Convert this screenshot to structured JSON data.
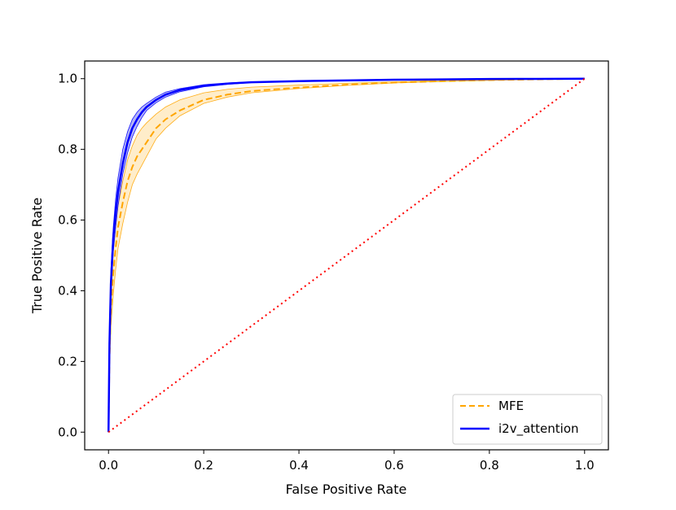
{
  "chart_data": {
    "type": "line",
    "title": "",
    "xlabel": "False Positive Rate",
    "ylabel": "True Positive Rate",
    "xlim": [
      -0.05,
      1.05
    ],
    "ylim": [
      -0.05,
      1.05
    ],
    "xticks": [
      "0.0",
      "0.2",
      "0.4",
      "0.6",
      "0.8",
      "1.0"
    ],
    "yticks": [
      "0.0",
      "0.2",
      "0.4",
      "0.6",
      "0.8",
      "1.0"
    ],
    "grid": false,
    "legend_position": "lower-right",
    "series": [
      {
        "name": "MFE",
        "color": "#ffa500",
        "style": "dashed",
        "band_fill": "#ffdf9e",
        "x": [
          0,
          0.002,
          0.005,
          0.01,
          0.015,
          0.02,
          0.03,
          0.04,
          0.05,
          0.06,
          0.07,
          0.08,
          0.1,
          0.12,
          0.15,
          0.2,
          0.25,
          0.3,
          0.4,
          0.5,
          0.6,
          0.7,
          0.8,
          0.9,
          1.0
        ],
        "y": [
          0.0,
          0.2,
          0.35,
          0.45,
          0.52,
          0.58,
          0.65,
          0.71,
          0.75,
          0.78,
          0.8,
          0.82,
          0.86,
          0.885,
          0.91,
          0.94,
          0.955,
          0.965,
          0.975,
          0.983,
          0.989,
          0.993,
          0.996,
          0.998,
          1.0
        ],
        "y_lower": [
          0.0,
          0.17,
          0.3,
          0.39,
          0.46,
          0.52,
          0.59,
          0.65,
          0.7,
          0.73,
          0.755,
          0.78,
          0.83,
          0.86,
          0.895,
          0.93,
          0.948,
          0.96,
          0.972,
          0.981,
          0.988,
          0.992,
          0.995,
          0.998,
          1.0
        ],
        "y_upper": [
          0.0,
          0.24,
          0.4,
          0.51,
          0.58,
          0.64,
          0.71,
          0.77,
          0.81,
          0.84,
          0.86,
          0.875,
          0.9,
          0.92,
          0.94,
          0.96,
          0.97,
          0.976,
          0.982,
          0.987,
          0.991,
          0.995,
          0.997,
          0.999,
          1.0
        ]
      },
      {
        "name": "i2v_attention",
        "color": "#0000ff",
        "style": "solid",
        "band_fill": "#7777ee",
        "x": [
          0,
          0.002,
          0.005,
          0.01,
          0.015,
          0.02,
          0.03,
          0.04,
          0.05,
          0.06,
          0.07,
          0.08,
          0.1,
          0.12,
          0.15,
          0.2,
          0.25,
          0.3,
          0.4,
          0.5,
          0.6,
          0.7,
          0.8,
          0.9,
          1.0
        ],
        "y": [
          0.0,
          0.25,
          0.42,
          0.55,
          0.62,
          0.68,
          0.76,
          0.82,
          0.86,
          0.885,
          0.905,
          0.92,
          0.94,
          0.955,
          0.968,
          0.98,
          0.986,
          0.99,
          0.993,
          0.995,
          0.997,
          0.998,
          0.999,
          0.9995,
          1.0
        ],
        "y_lower": [
          0.0,
          0.22,
          0.38,
          0.51,
          0.58,
          0.64,
          0.73,
          0.79,
          0.835,
          0.865,
          0.89,
          0.91,
          0.932,
          0.948,
          0.963,
          0.977,
          0.984,
          0.989,
          0.992,
          0.994,
          0.996,
          0.997,
          0.998,
          0.999,
          1.0
        ],
        "y_upper": [
          0.0,
          0.28,
          0.46,
          0.58,
          0.66,
          0.72,
          0.8,
          0.85,
          0.885,
          0.905,
          0.92,
          0.93,
          0.948,
          0.962,
          0.972,
          0.983,
          0.988,
          0.991,
          0.994,
          0.996,
          0.998,
          0.999,
          0.9995,
          1.0,
          1.0
        ]
      },
      {
        "name": "",
        "color": "#ff0000",
        "style": "dotted",
        "x": [
          0,
          1
        ],
        "y": [
          0,
          1
        ]
      }
    ]
  }
}
